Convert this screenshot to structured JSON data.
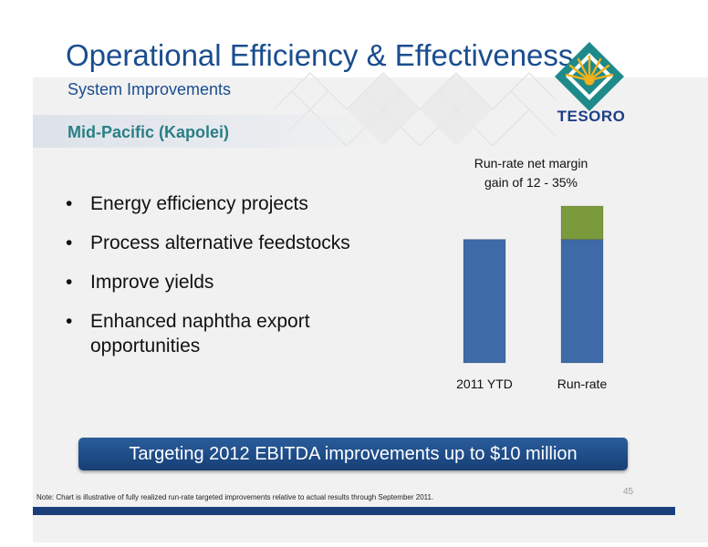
{
  "header": {
    "title": "Operational Efficiency & Effectiveness",
    "subtitle": "System Improvements",
    "section": "Mid-Pacific (Kapolei)"
  },
  "logo": {
    "text": "TESORO",
    "primary_color": "#1f8a8a",
    "accent_color": "#f2b21b",
    "text_color": "#1e3f88"
  },
  "bullets": [
    "Energy efficiency projects",
    "Process alternative feedstocks",
    "Improve yields",
    "Enhanced naphtha export opportunities"
  ],
  "chart_data": {
    "type": "bar",
    "stacked": true,
    "title": "Run-rate net margin gain of 12 - 35%",
    "categories": [
      "2011 YTD",
      "Run-rate"
    ],
    "series": [
      {
        "values": [
          100,
          100
        ],
        "color": "#3e6aa8"
      },
      {
        "values": [
          0,
          27
        ],
        "color": "#7a9a3c"
      }
    ],
    "ylim": [
      0,
      130
    ],
    "grid": false,
    "axes_visible": false
  },
  "callout": "Targeting 2012 EBITDA improvements up to $10 million",
  "note": "Note:  Chart is illustrative of fully realized run-rate targeted improvements relative to actual results through September 2011.",
  "page_number": "45"
}
